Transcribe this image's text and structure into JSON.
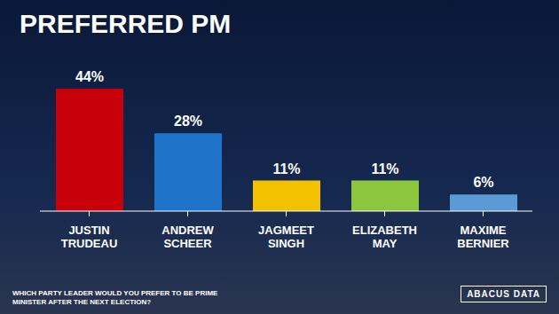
{
  "chart_data": {
    "type": "bar",
    "title": "PREFERRED PM",
    "categories": [
      "JUSTIN TRUDEAU",
      "ANDREW SCHEER",
      "JAGMEET SINGH",
      "ELIZABETH MAY",
      "MAXIME BERNIER"
    ],
    "values": [
      44,
      28,
      11,
      11,
      6
    ],
    "value_labels": [
      "44%",
      "28%",
      "11%",
      "11%",
      "6%"
    ],
    "colors": [
      "#c8000a",
      "#1f74c9",
      "#f2c200",
      "#8cc63f",
      "#5b9bd5"
    ],
    "data_labels": true,
    "tick_labels": "x",
    "grid": false,
    "caption": "WHICH PARTY LEADER WOULD YOU PREFER TO BE PRIME MINISTER AFTER THE NEXT ELECTION?",
    "source": "ABACUS DATA"
  }
}
